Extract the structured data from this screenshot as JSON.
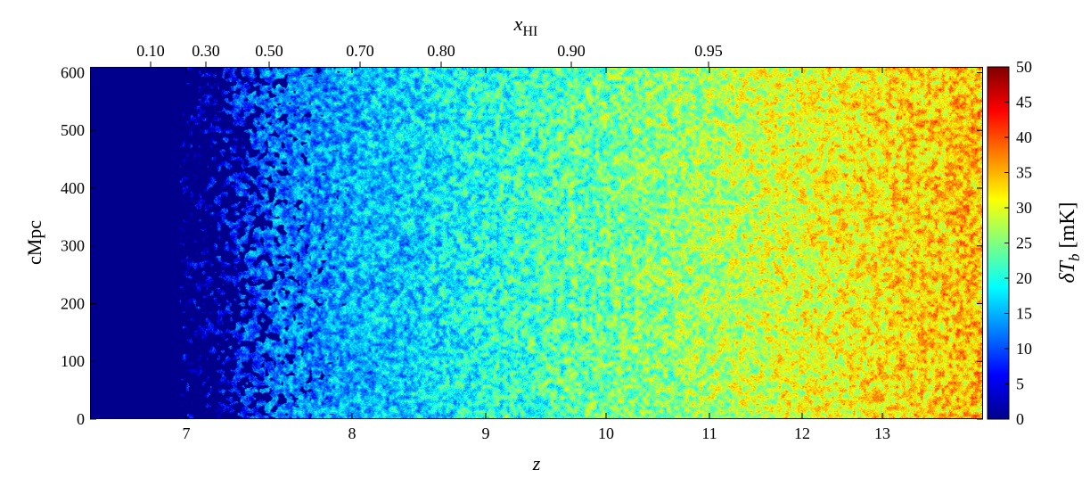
{
  "chart_data": {
    "type": "heatmap",
    "x": {
      "label": "z",
      "ticks": [
        7,
        8,
        9,
        10,
        11,
        12,
        13
      ],
      "tick_labels": [
        "7",
        "8",
        "9",
        "10",
        "11",
        "12",
        "13"
      ],
      "range_index": [
        6.35,
        13.85
      ],
      "scale": "nonlinear"
    },
    "y": {
      "label": "cMpc",
      "ticks": [
        0,
        100,
        200,
        300,
        400,
        500,
        600
      ],
      "tick_labels": [
        "0",
        "100",
        "200",
        "300",
        "400",
        "500",
        "600"
      ],
      "range": [
        0,
        610
      ]
    },
    "x_top": {
      "label": "x_HI",
      "ticks": [
        0.1,
        0.3,
        0.5,
        0.7,
        0.8,
        0.9,
        0.95
      ],
      "tick_labels": [
        "0.10",
        "0.30",
        "0.50",
        "0.70",
        "0.80",
        "0.90",
        "0.95"
      ]
    },
    "colorbar": {
      "label": "δT_b [mK]",
      "range": [
        0,
        50
      ],
      "ticks": [
        0,
        5,
        10,
        15,
        20,
        25,
        30,
        35,
        40,
        45,
        50
      ],
      "tick_labels": [
        "0",
        "5",
        "10",
        "15",
        "20",
        "25",
        "30",
        "35",
        "40",
        "45",
        "50"
      ],
      "colormap": "jet",
      "colors": [
        "#00008b",
        "#0000ff",
        "#0080ff",
        "#00ffff",
        "#80ff80",
        "#ffff00",
        "#ff8000",
        "#ff0000",
        "#800000"
      ]
    },
    "description_values": {
      "mean_dTb_by_z": {
        "z": [
          6.5,
          7.0,
          7.5,
          8.0,
          8.5,
          9.0,
          9.5,
          10.0,
          11.0,
          12.0,
          13.0,
          13.8
        ],
        "mean_mK": [
          0,
          3,
          12,
          15,
          17,
          20,
          22,
          24,
          27,
          30,
          32,
          34
        ]
      }
    },
    "grid": false,
    "legend": "none"
  }
}
